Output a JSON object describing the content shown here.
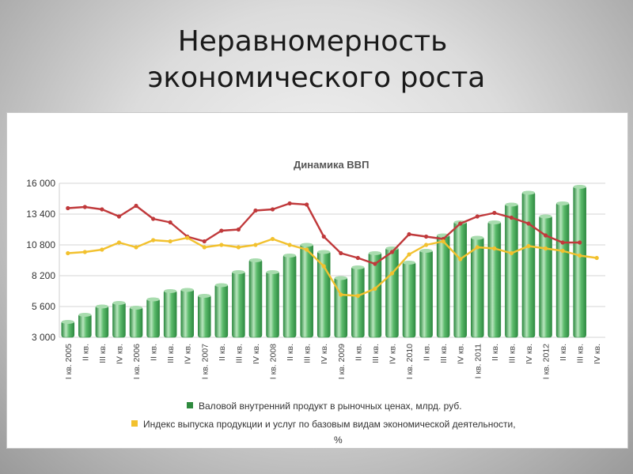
{
  "slide": {
    "title_line1": "Неравномерность",
    "title_line2": "экономического роста"
  },
  "colors": {
    "bar": "#4aa55a",
    "bar_light": "#a8dcae",
    "bar_dark": "#2e8a41",
    "red_line": "#c0393b",
    "yellow_line": "#f2c12e",
    "legend_green": "#2e8a3e"
  },
  "chart_data": {
    "type": "bar",
    "title": "Динамика ВВП",
    "ylim": [
      3000,
      16000
    ],
    "yticks": [
      "16 000",
      "13 400",
      "10 800",
      "8 200",
      "5 600",
      "3 000"
    ],
    "ytick_values": [
      16000,
      13400,
      10800,
      8200,
      5600,
      3000
    ],
    "grid": true,
    "categories": [
      "I кв. 2005",
      "II кв.",
      "III кв.",
      "IV кв.",
      "I кв. 2006",
      "II кв.",
      "III кв.",
      "IV кв.",
      "I кв. 2007",
      "II кв.",
      "III кв.",
      "IV кв.",
      "I кв. 2008",
      "II кв.",
      "III кв.",
      "IV кв.",
      "I кв. 2009",
      "II кв.",
      "III кв.",
      "IV кв.",
      "I кв. 2010",
      "II кв.",
      "III кв.",
      "IV кв.",
      "I кв. 2011",
      "II кв.",
      "III кв.",
      "IV кв.",
      "I кв. 2012",
      "II кв.",
      "III кв.",
      "IV кв."
    ],
    "series": [
      {
        "name": "Валовой внутренний продукт в рыночных ценах, млрд. руб.",
        "type": "bar",
        "values": [
          4400,
          5000,
          5700,
          6000,
          5600,
          6300,
          7000,
          7100,
          6600,
          7500,
          8600,
          9600,
          8600,
          10000,
          10900,
          10300,
          8100,
          9000,
          10200,
          10600,
          9400,
          10400,
          11700,
          12800,
          11500,
          12800,
          14300,
          15300,
          13300,
          14400,
          15800,
          null
        ]
      },
      {
        "name": "Индекс выпуска продукции и услуг по базовым видам экономической деятельности, %",
        "type": "line",
        "values": [
          10100,
          10200,
          10400,
          11000,
          10600,
          11200,
          11100,
          11400,
          10600,
          10800,
          10600,
          10800,
          11300,
          10800,
          10400,
          9000,
          6600,
          6500,
          7100,
          8400,
          10000,
          10800,
          11100,
          9600,
          10600,
          10500,
          10100,
          10700,
          10500,
          10300,
          9900,
          9700
        ]
      },
      {
        "type": "line",
        "values": [
          13900,
          14000,
          13800,
          13200,
          14100,
          13000,
          12700,
          11500,
          11100,
          12000,
          12100,
          13700,
          13800,
          14300,
          14200,
          11500,
          10100,
          9700,
          9200,
          10200,
          11700,
          11500,
          11300,
          12600,
          13200,
          13500,
          13100,
          12600,
          11600,
          11000,
          11000,
          null
        ]
      }
    ],
    "legend": [
      "Валовой внутренний продукт в рыночных ценах, млрд. руб.",
      "Индекс выпуска продукции и услуг по базовым видам экономической деятельности,",
      "%"
    ]
  }
}
